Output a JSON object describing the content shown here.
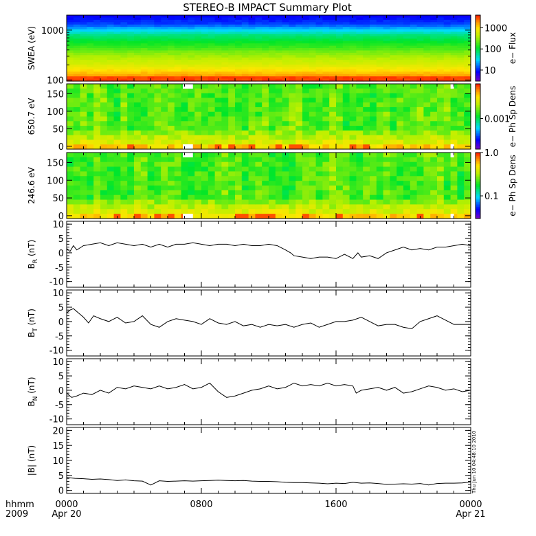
{
  "title": "STEREO-B IMPACT Summary Plot",
  "stamp": "Thu Jun 10 04:48:10 2010",
  "time_axis": {
    "row_label_1": "hhmm",
    "row_label_2": "2009",
    "ticks": [
      {
        "hour": 0,
        "label": "0000",
        "sublabel": "Apr 20"
      },
      {
        "hour": 8,
        "label": "0800",
        "sublabel": ""
      },
      {
        "hour": 16,
        "label": "1600",
        "sublabel": ""
      },
      {
        "hour": 24,
        "label": "0000",
        "sublabel": "Apr 21"
      }
    ]
  },
  "chart_data": [
    {
      "type": "heatmap",
      "ylabel": "SWEA (eV)",
      "ylog": true,
      "ylim": [
        95,
        2000
      ],
      "yticks": [
        {
          "v": 100,
          "label": "100"
        },
        {
          "v": 1000,
          "label": "1000"
        }
      ],
      "colorbar": {
        "label": "e− Flux",
        "log": true,
        "range": [
          3,
          4000
        ],
        "ticks": [
          {
            "v": 10,
            "label": "10"
          },
          {
            "v": 100,
            "label": "100"
          },
          {
            "v": 1000,
            "label": "1000"
          }
        ]
      },
      "colormap": "rainbow"
    },
    {
      "type": "heatmap",
      "ylabel": "650.7 eV",
      "ylim": [
        -8,
        178
      ],
      "yticks": [
        {
          "v": 0,
          "label": "0"
        },
        {
          "v": 50,
          "label": "50"
        },
        {
          "v": 100,
          "label": "100"
        },
        {
          "v": 150,
          "label": "150"
        }
      ],
      "colorbar": {
        "label": "e− Ph Sp Dens",
        "log": true,
        "range": [
          5e-05,
          0.03
        ],
        "ticks": [
          {
            "v": 0.001,
            "label": "0.001"
          }
        ]
      },
      "data_gaps_hours": [
        [
          6.9,
          7.5
        ],
        [
          22.8,
          23.0
        ]
      ],
      "colormap": "rainbow"
    },
    {
      "type": "heatmap",
      "ylabel": "246.6 eV",
      "ylim": [
        -8,
        178
      ],
      "yticks": [
        {
          "v": 0,
          "label": "0"
        },
        {
          "v": 50,
          "label": "50"
        },
        {
          "v": 100,
          "label": "100"
        },
        {
          "v": 150,
          "label": "150"
        }
      ],
      "colorbar": {
        "label": "e− Ph Sp Dens",
        "log": true,
        "range": [
          0.03,
          1.0
        ],
        "ticks": [
          {
            "v": 0.1,
            "label": "0.1"
          },
          {
            "v": 1.0,
            "label": "1.0"
          }
        ]
      },
      "data_gaps_hours": [
        [
          6.9,
          7.5
        ],
        [
          22.8,
          23.0
        ]
      ],
      "colormap": "rainbow"
    },
    {
      "type": "line",
      "ylabel": "B",
      "ylabel_sub": "R",
      "ylabel_unit": "(nT)",
      "ylim": [
        -12,
        11
      ],
      "yticks": [
        -10,
        -5,
        0,
        5,
        10
      ],
      "x_hours": [
        0,
        0.2,
        0.4,
        0.6,
        1,
        1.5,
        2,
        2.5,
        3,
        3.5,
        4,
        4.5,
        5,
        5.5,
        6,
        6.5,
        7,
        7.5,
        8,
        8.5,
        9,
        9.5,
        10,
        10.5,
        11,
        11.5,
        12,
        12.5,
        13,
        13.3,
        13.5,
        14,
        14.5,
        15,
        15.5,
        16,
        16.5,
        17,
        17.3,
        17.5,
        18,
        18.5,
        19,
        19.5,
        20,
        20.5,
        21,
        21.5,
        22,
        22.5,
        23,
        23.5,
        24
      ],
      "values": [
        1.5,
        0.5,
        2.5,
        1,
        2.5,
        3,
        3.5,
        2.5,
        3.5,
        3,
        2.5,
        3,
        2,
        3,
        2,
        3,
        3,
        3.5,
        3,
        2.5,
        3,
        3,
        2.5,
        3,
        2.5,
        2.5,
        3,
        2.5,
        1,
        0,
        -1,
        -1.5,
        -2,
        -1.5,
        -1.5,
        -2,
        -0.5,
        -2,
        0,
        -1.5,
        -1,
        -2,
        0,
        1,
        2,
        1,
        1.5,
        1,
        2,
        2,
        2.5,
        3,
        2.5
      ]
    },
    {
      "type": "line",
      "ylabel": "B",
      "ylabel_sub": "T",
      "ylabel_unit": "(nT)",
      "ylim": [
        -12,
        11
      ],
      "yticks": [
        -10,
        -5,
        0,
        5,
        10
      ],
      "x_hours": [
        0,
        0.2,
        0.4,
        0.7,
        1,
        1.3,
        1.6,
        2,
        2.5,
        3,
        3.5,
        4,
        4.5,
        5,
        5.5,
        6,
        6.5,
        7,
        7.5,
        8,
        8.5,
        9,
        9.5,
        10,
        10.5,
        11,
        11.5,
        12,
        12.5,
        13,
        13.5,
        14,
        14.5,
        15,
        15.5,
        16,
        16.5,
        17,
        17.5,
        18,
        18.5,
        19,
        19.5,
        20,
        20.5,
        21,
        21.5,
        22,
        22.5,
        23,
        23.5,
        24
      ],
      "values": [
        3,
        4,
        4.5,
        3,
        1.5,
        -0.5,
        2,
        1,
        0,
        1.5,
        -0.5,
        0,
        2,
        -1,
        -2,
        0,
        1,
        0.5,
        0,
        -1,
        1,
        -0.5,
        -1,
        0,
        -1.5,
        -1,
        -2,
        -1,
        -1.5,
        -1,
        -2,
        -1,
        -0.5,
        -2,
        -1,
        0,
        0,
        0.5,
        1.5,
        0,
        -1.5,
        -1,
        -1,
        -2,
        -2.5,
        0,
        1,
        2,
        0.5,
        -1,
        -1,
        -1
      ]
    },
    {
      "type": "line",
      "ylabel": "B",
      "ylabel_sub": "N",
      "ylabel_unit": "(nT)",
      "ylim": [
        -12,
        11
      ],
      "yticks": [
        -10,
        -5,
        0,
        5,
        10
      ],
      "x_hours": [
        0,
        0.3,
        0.6,
        1,
        1.5,
        2,
        2.5,
        3,
        3.5,
        4,
        4.5,
        5,
        5.5,
        6,
        6.5,
        7,
        7.5,
        8,
        8.5,
        9,
        9.5,
        10,
        10.5,
        11,
        11.5,
        12,
        12.5,
        13,
        13.5,
        14,
        14.5,
        15,
        15.5,
        16,
        16.5,
        17,
        17.2,
        17.5,
        18,
        18.5,
        19,
        19.5,
        20,
        20.5,
        21,
        21.5,
        22,
        22.5,
        23,
        23.5,
        24
      ],
      "values": [
        -1,
        -2.5,
        -2,
        -1,
        -1.5,
        0,
        -1,
        1,
        0.5,
        1.5,
        1,
        0.5,
        1.5,
        0.5,
        1,
        2,
        0.5,
        1,
        2.5,
        -0.5,
        -2.5,
        -2,
        -1,
        0,
        0.5,
        1.5,
        0.5,
        1,
        2.5,
        1.5,
        2,
        1.5,
        2.5,
        1.5,
        2,
        1.5,
        -1,
        0,
        0.5,
        1,
        0,
        1,
        -1,
        -0.5,
        0.5,
        1.5,
        1,
        0,
        0.5,
        -0.5,
        0
      ]
    },
    {
      "type": "line",
      "ylabel": "|B|",
      "ylabel_sub": "",
      "ylabel_unit": "(nT)",
      "ylim": [
        -1,
        21
      ],
      "yticks": [
        0,
        5,
        10,
        15,
        20
      ],
      "x_hours": [
        0,
        0.5,
        1,
        1.5,
        2,
        2.5,
        3,
        3.5,
        4,
        4.5,
        5,
        5.5,
        6,
        6.5,
        7,
        7.5,
        8,
        8.5,
        9,
        9.5,
        10,
        10.5,
        11,
        11.5,
        12,
        12.5,
        13,
        13.5,
        14,
        14.5,
        15,
        15.5,
        16,
        16.5,
        17,
        17.5,
        18,
        18.5,
        19,
        19.5,
        20,
        20.5,
        21,
        21.5,
        22,
        22.5,
        23,
        23.5,
        24
      ],
      "values": [
        4.3,
        4,
        3.9,
        3.7,
        3.8,
        3.6,
        3.3,
        3.5,
        3.2,
        3.1,
        1.8,
        3.2,
        3,
        3.1,
        3.2,
        3.1,
        3.2,
        3.3,
        3.4,
        3.3,
        3.2,
        3.3,
        3.1,
        3,
        3,
        2.9,
        2.7,
        2.6,
        2.6,
        2.5,
        2.4,
        2.2,
        2.4,
        2.3,
        2.7,
        2.4,
        2.5,
        2.3,
        2,
        2.1,
        2.2,
        2.1,
        2.3,
        1.8,
        2.3,
        2.4,
        2.4,
        2.5,
        2.8
      ]
    }
  ]
}
